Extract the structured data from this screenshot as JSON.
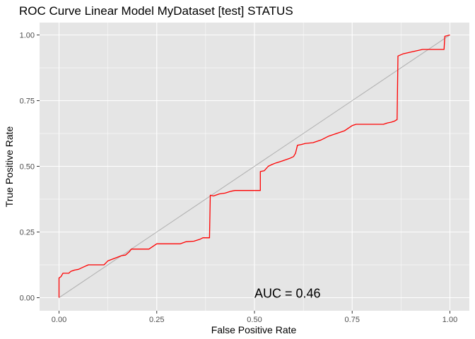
{
  "chart_data": {
    "type": "line",
    "title": "ROC Curve Linear Model MyDataset [test] STATUS",
    "xlabel": "False Positive Rate",
    "ylabel": "True Positive Rate",
    "xlim": [
      0,
      1
    ],
    "ylim": [
      0,
      1
    ],
    "x_ticks": [
      "0.00",
      "0.25",
      "0.50",
      "0.75",
      "1.00"
    ],
    "y_ticks": [
      "0.00",
      "0.25",
      "0.50",
      "0.75",
      "1.00"
    ],
    "grid": true,
    "legend": "none",
    "annotation": {
      "text": "AUC = 0.46",
      "x": 0.5,
      "y": 0.0
    },
    "colors": {
      "roc": "#ff0000",
      "diagonal": "#b3b3b3",
      "panel": "#e5e5e5",
      "grid": "#ffffff"
    },
    "series": [
      {
        "values": [
          [
            0.0,
            0.0
          ],
          [
            0.0,
            0.075
          ],
          [
            0.005,
            0.08
          ],
          [
            0.01,
            0.093
          ],
          [
            0.025,
            0.093
          ],
          [
            0.03,
            0.1
          ],
          [
            0.04,
            0.105
          ],
          [
            0.05,
            0.108
          ],
          [
            0.06,
            0.115
          ],
          [
            0.075,
            0.125
          ],
          [
            0.115,
            0.125
          ],
          [
            0.125,
            0.14
          ],
          [
            0.16,
            0.16
          ],
          [
            0.17,
            0.162
          ],
          [
            0.18,
            0.175
          ],
          [
            0.185,
            0.185
          ],
          [
            0.23,
            0.185
          ],
          [
            0.245,
            0.2
          ],
          [
            0.25,
            0.205
          ],
          [
            0.31,
            0.205
          ],
          [
            0.325,
            0.213
          ],
          [
            0.345,
            0.215
          ],
          [
            0.36,
            0.222
          ],
          [
            0.368,
            0.228
          ],
          [
            0.385,
            0.228
          ],
          [
            0.387,
            0.39
          ],
          [
            0.395,
            0.387
          ],
          [
            0.41,
            0.395
          ],
          [
            0.425,
            0.398
          ],
          [
            0.44,
            0.405
          ],
          [
            0.45,
            0.408
          ],
          [
            0.515,
            0.408
          ],
          [
            0.515,
            0.48
          ],
          [
            0.525,
            0.483
          ],
          [
            0.535,
            0.5
          ],
          [
            0.545,
            0.507
          ],
          [
            0.555,
            0.513
          ],
          [
            0.57,
            0.52
          ],
          [
            0.59,
            0.53
          ],
          [
            0.6,
            0.537
          ],
          [
            0.605,
            0.55
          ],
          [
            0.61,
            0.58
          ],
          [
            0.62,
            0.583
          ],
          [
            0.63,
            0.587
          ],
          [
            0.65,
            0.59
          ],
          [
            0.67,
            0.6
          ],
          [
            0.69,
            0.615
          ],
          [
            0.71,
            0.625
          ],
          [
            0.73,
            0.635
          ],
          [
            0.74,
            0.645
          ],
          [
            0.75,
            0.655
          ],
          [
            0.76,
            0.66
          ],
          [
            0.83,
            0.66
          ],
          [
            0.84,
            0.665
          ],
          [
            0.85,
            0.668
          ],
          [
            0.858,
            0.672
          ],
          [
            0.865,
            0.678
          ],
          [
            0.867,
            0.92
          ],
          [
            0.88,
            0.928
          ],
          [
            0.895,
            0.933
          ],
          [
            0.93,
            0.945
          ],
          [
            0.985,
            0.945
          ],
          [
            0.987,
            0.995
          ],
          [
            1.0,
            1.0
          ]
        ]
      }
    ]
  }
}
